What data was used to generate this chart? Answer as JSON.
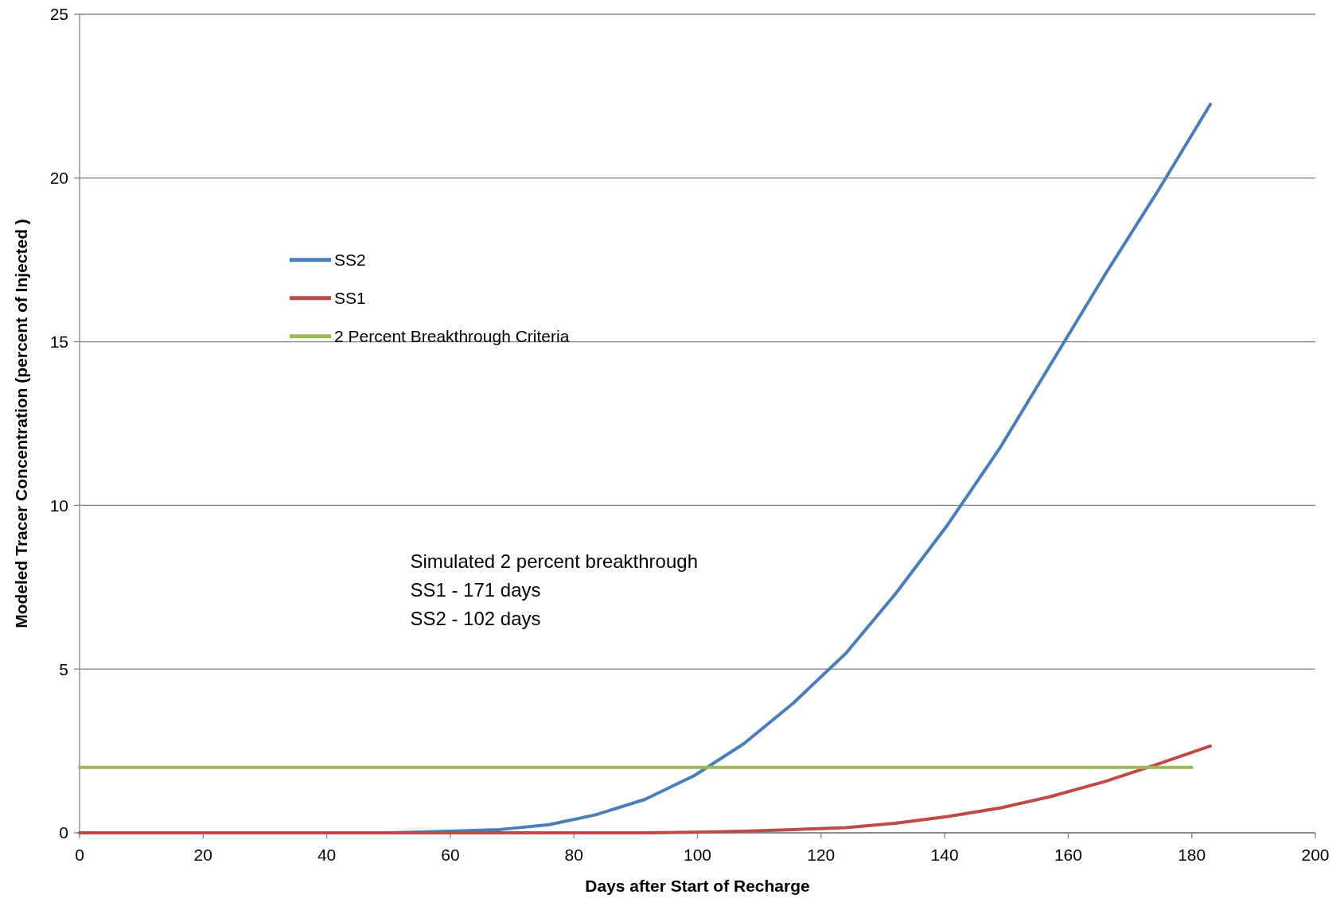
{
  "chart_data": {
    "type": "line",
    "xlabel": "Days after Start of Recharge",
    "ylabel": "Modeled Tracer Concentration (percent of Injected )",
    "xlim": [
      0,
      200
    ],
    "xticks": [
      0,
      20,
      40,
      60,
      80,
      100,
      120,
      140,
      160,
      180,
      200
    ],
    "ylim": [
      0,
      25
    ],
    "yticks": [
      0,
      5,
      10,
      15,
      20,
      25
    ],
    "grid": "y",
    "legend": "top left",
    "marker": "none",
    "line_style": "solid",
    "series": [
      {
        "name": "SS2",
        "color": "#4a7ebb",
        "x": [
          0,
          50,
          60,
          68,
          76,
          83.5,
          91.5,
          99.5,
          107.5,
          115.5,
          124,
          132,
          140.5,
          149,
          157,
          166,
          174.5,
          183
        ],
        "values": [
          0,
          0,
          0.05,
          0.1,
          0.25,
          0.55,
          1.02,
          1.75,
          2.72,
          3.96,
          5.48,
          7.29,
          9.41,
          11.77,
          14.26,
          17.06,
          19.6,
          22.25
        ]
      },
      {
        "name": "SS1",
        "color": "#be4b48",
        "x": [
          0,
          91.5,
          99.5,
          107.5,
          115.5,
          124,
          132,
          140.5,
          149,
          157,
          166,
          174.5,
          183
        ],
        "values": [
          0,
          0,
          0.02,
          0.05,
          0.1,
          0.16,
          0.29,
          0.5,
          0.76,
          1.1,
          1.57,
          2.1,
          2.65
        ]
      },
      {
        "name": "2 Percent Breakthrough Criteria",
        "color": "#98b954",
        "x": [
          0,
          180
        ],
        "values": [
          2,
          2
        ]
      }
    ],
    "annotations": [
      "Simulated 2 percent breakthrough",
      "SS1 - 171 days",
      "SS2 - 102 days"
    ]
  }
}
